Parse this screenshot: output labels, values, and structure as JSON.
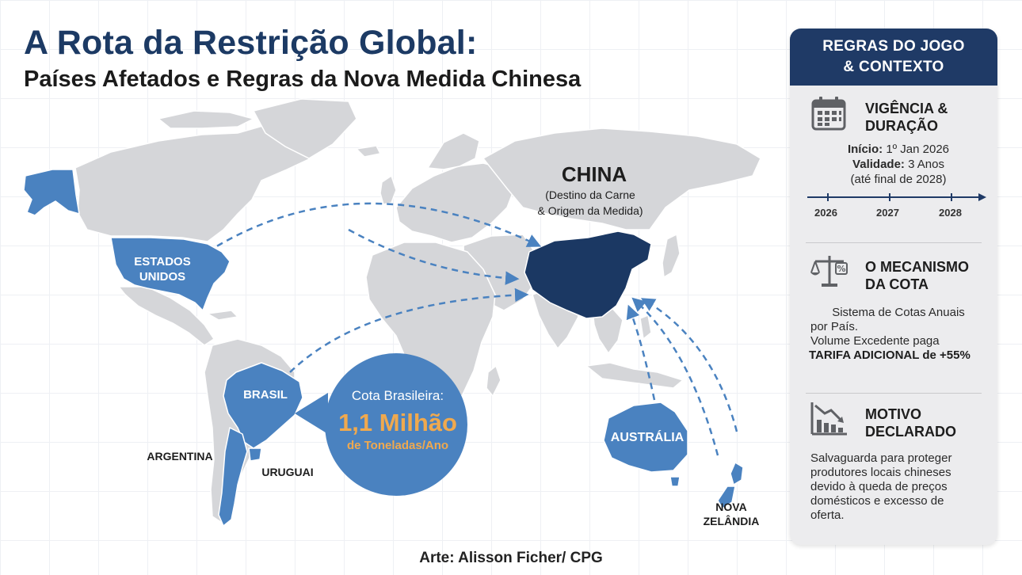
{
  "title": "A Rota da Restrição Global:",
  "subtitle": "Países Afetados e Regras da Nova Medida Chinesa",
  "colors": {
    "accent_blue": "#4a82c0",
    "navy": "#1b3863",
    "land_gray": "#d5d6d9",
    "orange": "#f0a94e"
  },
  "map": {
    "china_title": "CHINA",
    "china_sub_1": "(Destino da Carne",
    "china_sub_2": "& Origem da Medida)",
    "usa_1": "ESTADOS",
    "usa_2": "UNIDOS",
    "brasil": "BRASIL",
    "argentina": "ARGENTINA",
    "uruguai": "URUGUAI",
    "australia": "AUSTRÁLIA",
    "nz_1": "NOVA",
    "nz_2": "ZELÂNDIA",
    "callout_line1": "Cota Brasileira:",
    "callout_value": "1,1 Milhão",
    "callout_unit": "de Toneladas/Ano"
  },
  "panel": {
    "header_1": "REGRAS DO JOGO",
    "header_2": "& CONTEXTO",
    "s1_title_1": "VIGÊNCIA &",
    "s1_title_2": "DURAÇÃO",
    "s1_start_label": "Início:",
    "s1_start_value": "1º Jan 2026",
    "s1_validity_label": "Validade:",
    "s1_validity_value": "3 Anos",
    "s1_until": "(até final de 2028)",
    "timeline": [
      "2026",
      "2027",
      "2028"
    ],
    "s2_title_1": "O MECANISMO",
    "s2_title_2": "DA COTA",
    "s2_line1": "Sistema de Cotas Anuais",
    "s2_line2": "por País.",
    "s2_line3": "Volume Excedente paga",
    "s2_line4": "TARIFA ADICIONAL de +55%",
    "s3_title_1": "MOTIVO",
    "s3_title_2": "DECLARADO",
    "s3_line1": "Salvaguarda para proteger",
    "s3_line2": "produtores locais chineses",
    "s3_line3": "devido à queda de preços",
    "s3_line4": "domésticos e excesso de",
    "s3_line5": "oferta.",
    "icons": [
      "calendar-icon",
      "scale-percent-icon",
      "declining-chart-icon"
    ]
  },
  "credit": "Arte: Alisson Ficher/ CPG"
}
